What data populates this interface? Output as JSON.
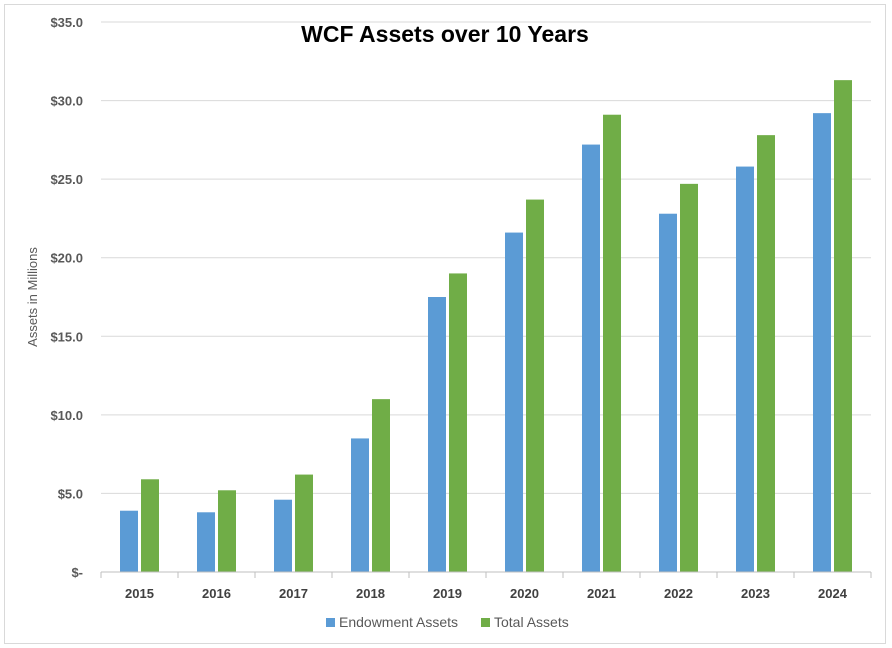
{
  "chart_data": {
    "type": "bar",
    "title": "WCF Assets over 10 Years",
    "xlabel": "",
    "ylabel": "Assets in Millions",
    "categories": [
      "2015",
      "2016",
      "2017",
      "2018",
      "2019",
      "2020",
      "2021",
      "2022",
      "2023",
      "2024"
    ],
    "series": [
      {
        "name": "Endowment Assets",
        "color": "#5b9bd5",
        "values": [
          3.9,
          3.8,
          4.6,
          8.5,
          17.5,
          21.6,
          27.2,
          22.8,
          25.8,
          29.2
        ]
      },
      {
        "name": "Total Assets",
        "color": "#70ad47",
        "values": [
          5.9,
          5.2,
          6.2,
          11.0,
          19.0,
          23.7,
          29.1,
          24.7,
          27.8,
          31.3
        ]
      }
    ],
    "ylim": [
      0,
      35
    ],
    "yticks": [
      0,
      5,
      10,
      15,
      20,
      25,
      30,
      35
    ],
    "ytick_labels": [
      "$-",
      "$5.0",
      "$10.0",
      "$15.0",
      "$20.0",
      "$25.0",
      "$30.0",
      "$35.0"
    ],
    "grid": true,
    "legend_position": "bottom"
  }
}
